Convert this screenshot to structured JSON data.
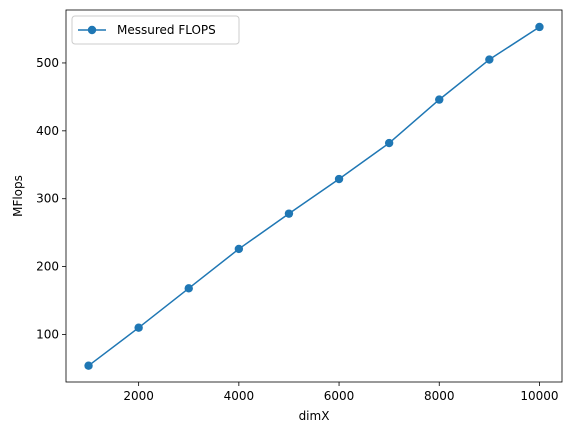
{
  "chart_data": {
    "type": "line",
    "title": "",
    "xlabel": "dimX",
    "ylabel": "MFlops",
    "xlim": [
      550,
      10450
    ],
    "ylim": [
      30,
      578
    ],
    "xticks": [
      2000,
      4000,
      6000,
      8000,
      10000
    ],
    "yticks": [
      100,
      200,
      300,
      400,
      500
    ],
    "grid": false,
    "legend": {
      "position": "top-left",
      "entries": [
        "Messured FLOPS"
      ]
    },
    "series": [
      {
        "name": "Messured FLOPS",
        "color": "#1f77b4",
        "marker": "circle",
        "x": [
          1000,
          2000,
          3000,
          4000,
          5000,
          6000,
          7000,
          8000,
          9000,
          10000
        ],
        "y": [
          54,
          110,
          168,
          226,
          278,
          329,
          382,
          446,
          505,
          553
        ]
      }
    ]
  }
}
